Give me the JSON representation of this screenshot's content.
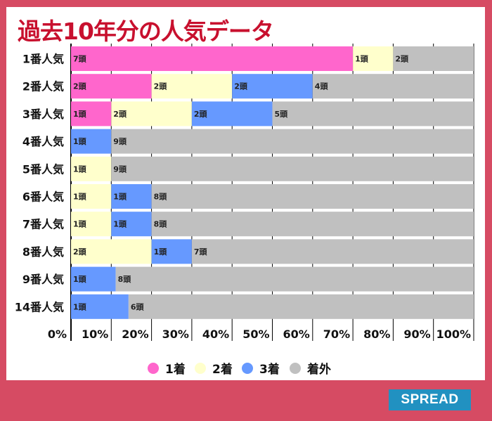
{
  "title": "過去10年分の人気データ",
  "logo": "SPREAD",
  "chart_data": {
    "type": "bar",
    "orientation": "horizontal-stacked-100",
    "title": "過去10年分の人気データ",
    "categories": [
      "1番人気",
      "2番人気",
      "3番人気",
      "4番人気",
      "5番人気",
      "6番人気",
      "7番人気",
      "8番人気",
      "9番人気",
      "14番人気"
    ],
    "series": [
      {
        "name": "1着",
        "color": "#ff66cc",
        "values": [
          7,
          2,
          1,
          0,
          0,
          0,
          0,
          0,
          0,
          0
        ]
      },
      {
        "name": "2着",
        "color": "#ffffcc",
        "values": [
          1,
          2,
          2,
          0,
          1,
          1,
          1,
          2,
          0,
          0
        ]
      },
      {
        "name": "3着",
        "color": "#6699ff",
        "values": [
          0,
          2,
          2,
          1,
          0,
          1,
          1,
          1,
          1,
          1
        ]
      },
      {
        "name": "着外",
        "color": "#c0c0c0",
        "values": [
          2,
          4,
          5,
          9,
          9,
          8,
          8,
          7,
          8,
          6
        ]
      }
    ],
    "unit": "頭",
    "xticks": [
      "0%",
      "10%",
      "20%",
      "30%",
      "40%",
      "50%",
      "60%",
      "70%",
      "80%",
      "90%",
      "100%"
    ],
    "xlim": [
      0,
      100
    ],
    "legend": "bottom-center"
  }
}
